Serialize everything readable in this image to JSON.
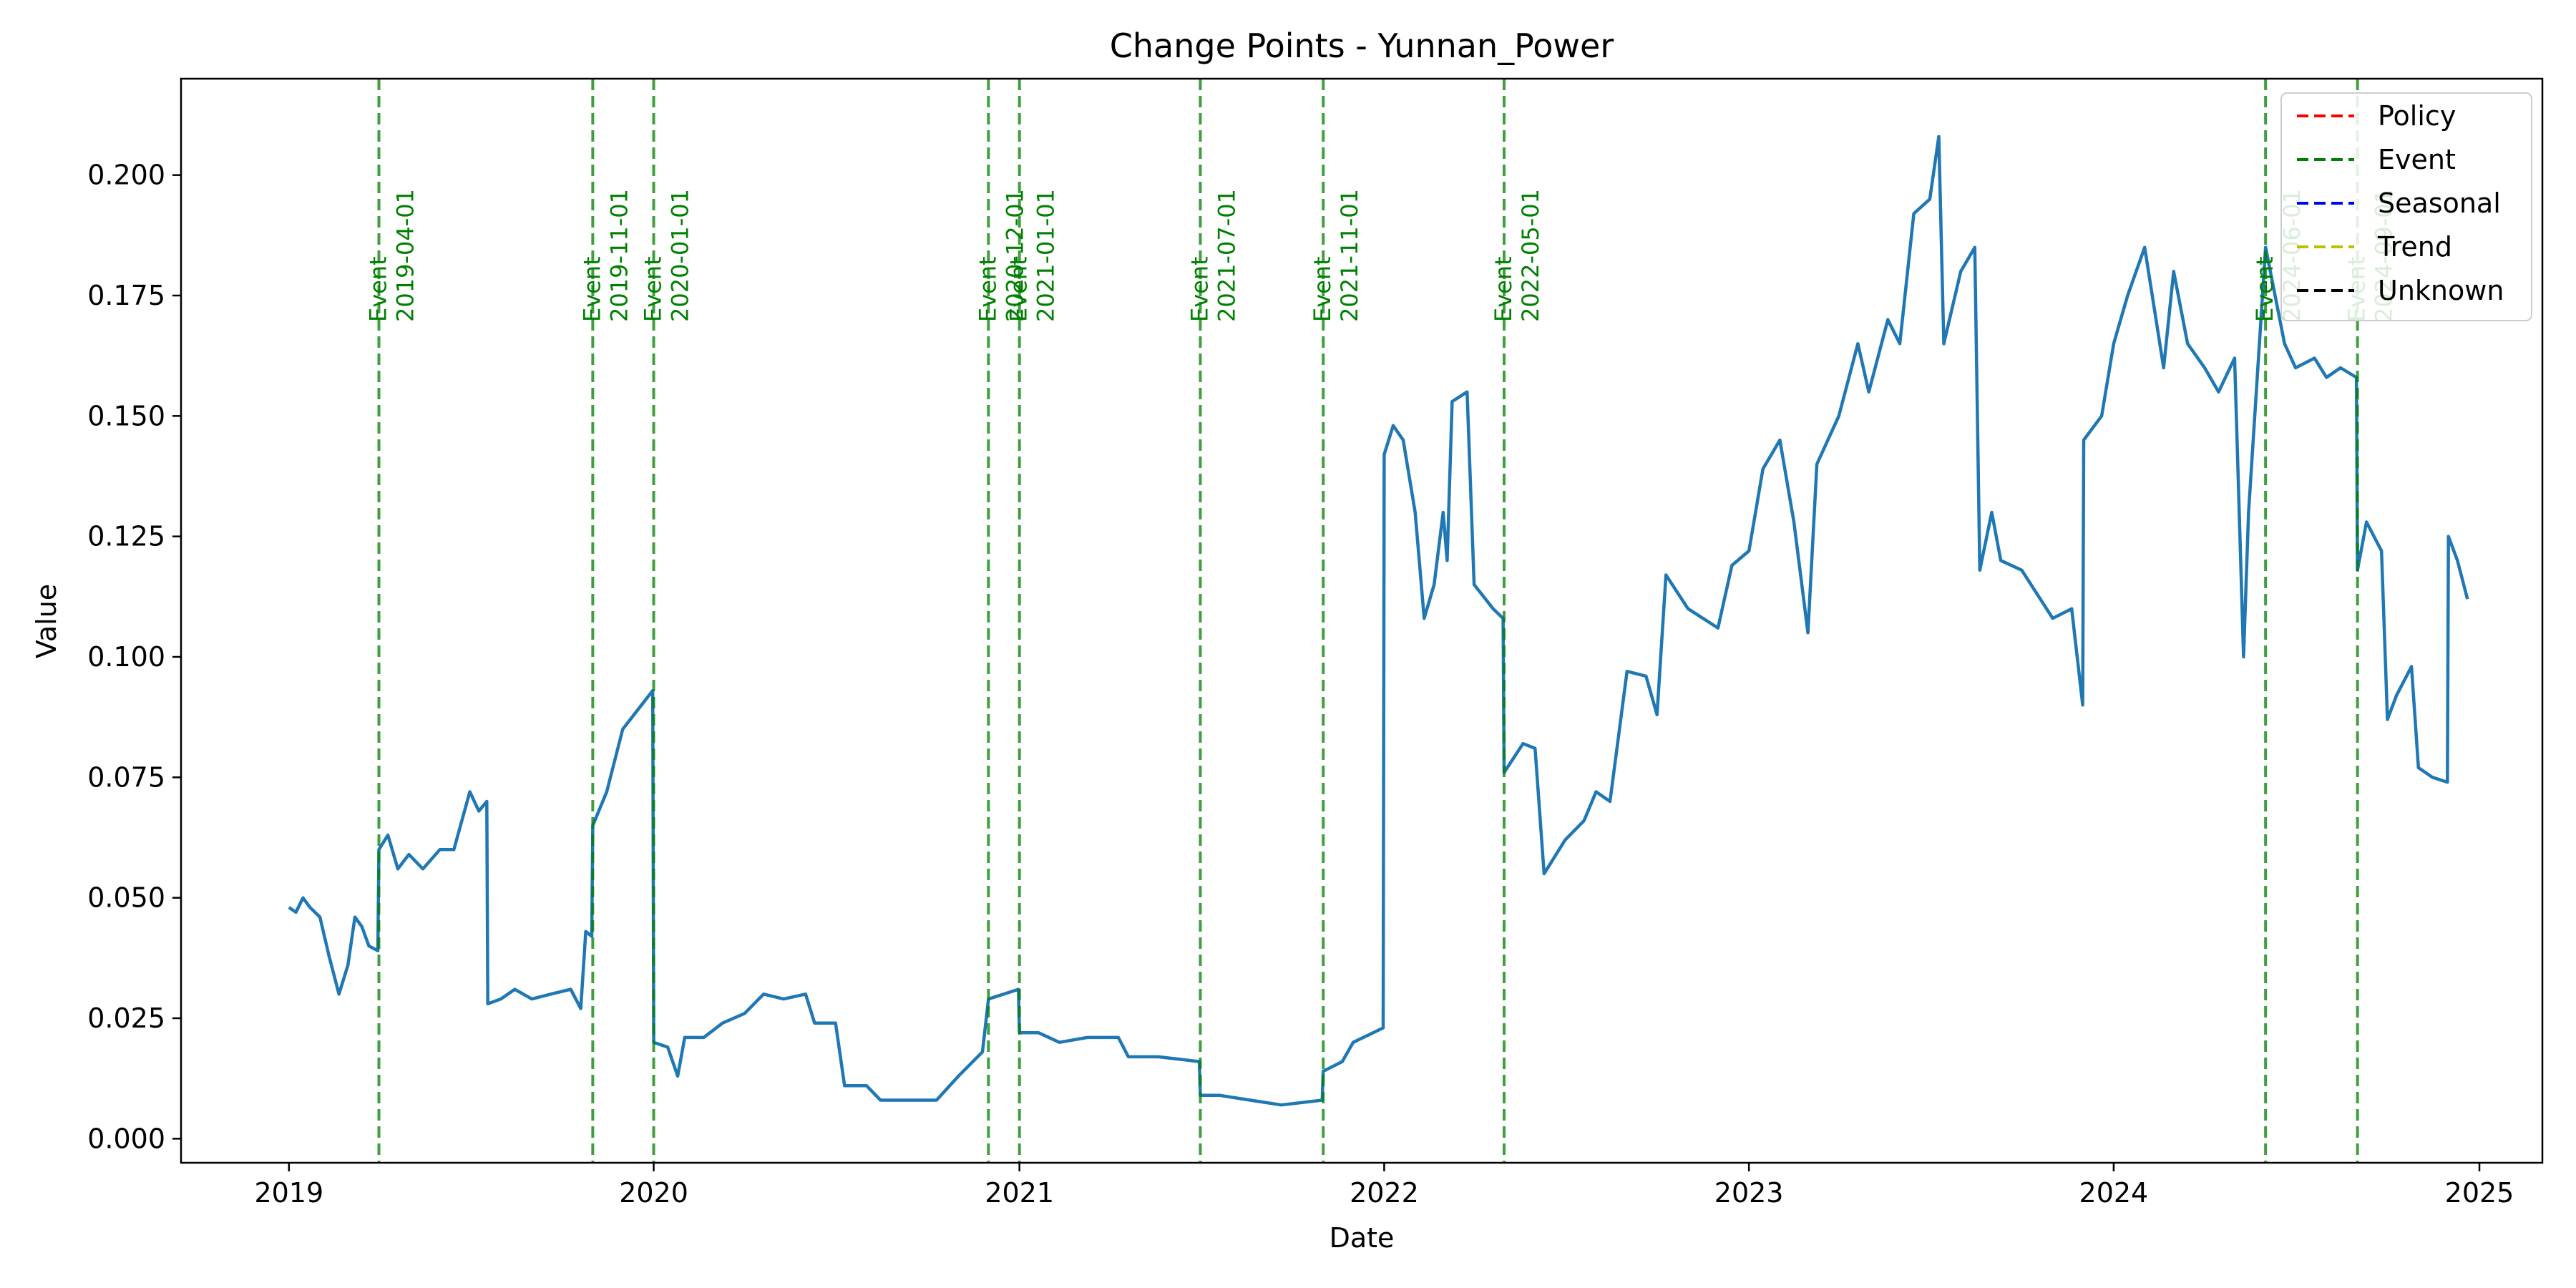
{
  "chart_data": {
    "type": "line",
    "title": "Change Points - Yunnan_Power",
    "xlabel": "Date",
    "ylabel": "Value",
    "xlim": [
      "2018-09-15",
      "2025-03-05"
    ],
    "ylim": [
      -0.005,
      0.22
    ],
    "x_ticks": [
      "2019",
      "2020",
      "2021",
      "2022",
      "2023",
      "2024",
      "2025"
    ],
    "y_ticks": [
      "0.000",
      "0.025",
      "0.050",
      "0.075",
      "0.100",
      "0.125",
      "0.150",
      "0.175",
      "0.200"
    ],
    "grid": false,
    "legend_position": "top-right",
    "legend": [
      {
        "label": "Policy",
        "color": "#ff0000"
      },
      {
        "label": "Event",
        "color": "#008000"
      },
      {
        "label": "Seasonal",
        "color": "#0000ff"
      },
      {
        "label": "Trend",
        "color": "#bfbf00"
      },
      {
        "label": "Unknown",
        "color": "#000000"
      }
    ],
    "change_points": [
      {
        "date": "2019-04-01",
        "type": "Event"
      },
      {
        "date": "2019-11-01",
        "type": "Event"
      },
      {
        "date": "2020-01-01",
        "type": "Event"
      },
      {
        "date": "2020-12-01",
        "type": "Event"
      },
      {
        "date": "2021-01-01",
        "type": "Event"
      },
      {
        "date": "2021-07-01",
        "type": "Event"
      },
      {
        "date": "2021-11-01",
        "type": "Event"
      },
      {
        "date": "2022-05-01",
        "type": "Event"
      },
      {
        "date": "2024-06-01",
        "type": "Event"
      },
      {
        "date": "2024-09-01",
        "type": "Event"
      }
    ],
    "series": [
      {
        "color": "#1f77b4",
        "points": [
          [
            "2019-01-01",
            0.048
          ],
          [
            "2019-01-08",
            0.047
          ],
          [
            "2019-01-15",
            0.05
          ],
          [
            "2019-01-22",
            0.048
          ],
          [
            "2019-02-01",
            0.046
          ],
          [
            "2019-02-10",
            0.038
          ],
          [
            "2019-02-20",
            0.03
          ],
          [
            "2019-03-01",
            0.036
          ],
          [
            "2019-03-08",
            0.046
          ],
          [
            "2019-03-15",
            0.044
          ],
          [
            "2019-03-22",
            0.04
          ],
          [
            "2019-03-31",
            0.039
          ],
          [
            "2019-04-01",
            0.06
          ],
          [
            "2019-04-10",
            0.063
          ],
          [
            "2019-04-20",
            0.056
          ],
          [
            "2019-05-01",
            0.059
          ],
          [
            "2019-05-15",
            0.056
          ],
          [
            "2019-06-01",
            0.06
          ],
          [
            "2019-06-15",
            0.06
          ],
          [
            "2019-07-01",
            0.072
          ],
          [
            "2019-07-10",
            0.068
          ],
          [
            "2019-07-18",
            0.07
          ],
          [
            "2019-07-19",
            0.028
          ],
          [
            "2019-08-01",
            0.029
          ],
          [
            "2019-08-15",
            0.031
          ],
          [
            "2019-09-01",
            0.029
          ],
          [
            "2019-09-20",
            0.03
          ],
          [
            "2019-10-10",
            0.031
          ],
          [
            "2019-10-20",
            0.027
          ],
          [
            "2019-10-25",
            0.043
          ],
          [
            "2019-10-31",
            0.042
          ],
          [
            "2019-11-01",
            0.065
          ],
          [
            "2019-11-15",
            0.072
          ],
          [
            "2019-12-01",
            0.085
          ],
          [
            "2019-12-31",
            0.093
          ],
          [
            "2020-01-01",
            0.02
          ],
          [
            "2020-01-15",
            0.019
          ],
          [
            "2020-01-25",
            0.013
          ],
          [
            "2020-02-01",
            0.021
          ],
          [
            "2020-02-20",
            0.021
          ],
          [
            "2020-03-10",
            0.024
          ],
          [
            "2020-04-01",
            0.026
          ],
          [
            "2020-04-20",
            0.03
          ],
          [
            "2020-05-10",
            0.029
          ],
          [
            "2020-06-01",
            0.03
          ],
          [
            "2020-06-10",
            0.024
          ],
          [
            "2020-07-01",
            0.024
          ],
          [
            "2020-07-10",
            0.011
          ],
          [
            "2020-08-01",
            0.011
          ],
          [
            "2020-08-15",
            0.008
          ],
          [
            "2020-09-15",
            0.008
          ],
          [
            "2020-10-10",
            0.008
          ],
          [
            "2020-11-01",
            0.013
          ],
          [
            "2020-11-25",
            0.018
          ],
          [
            "2020-12-01",
            0.029
          ],
          [
            "2020-12-31",
            0.031
          ],
          [
            "2021-01-01",
            0.022
          ],
          [
            "2021-01-20",
            0.022
          ],
          [
            "2021-02-10",
            0.02
          ],
          [
            "2021-03-10",
            0.021
          ],
          [
            "2021-04-10",
            0.021
          ],
          [
            "2021-04-20",
            0.017
          ],
          [
            "2021-05-20",
            0.017
          ],
          [
            "2021-06-30",
            0.016
          ],
          [
            "2021-07-01",
            0.009
          ],
          [
            "2021-07-20",
            0.009
          ],
          [
            "2021-08-20",
            0.008
          ],
          [
            "2021-09-20",
            0.007
          ],
          [
            "2021-10-31",
            0.008
          ],
          [
            "2021-11-01",
            0.014
          ],
          [
            "2021-11-20",
            0.016
          ],
          [
            "2021-12-01",
            0.02
          ],
          [
            "2021-12-31",
            0.023
          ],
          [
            "2022-01-01",
            0.142
          ],
          [
            "2022-01-10",
            0.148
          ],
          [
            "2022-01-20",
            0.145
          ],
          [
            "2022-02-01",
            0.13
          ],
          [
            "2022-02-10",
            0.108
          ],
          [
            "2022-02-20",
            0.115
          ],
          [
            "2022-03-01",
            0.13
          ],
          [
            "2022-03-05",
            0.12
          ],
          [
            "2022-03-10",
            0.153
          ],
          [
            "2022-03-25",
            0.155
          ],
          [
            "2022-04-01",
            0.115
          ],
          [
            "2022-04-20",
            0.11
          ],
          [
            "2022-04-30",
            0.108
          ],
          [
            "2022-05-01",
            0.076
          ],
          [
            "2022-05-20",
            0.082
          ],
          [
            "2022-06-01",
            0.081
          ],
          [
            "2022-06-10",
            0.055
          ],
          [
            "2022-07-01",
            0.062
          ],
          [
            "2022-07-20",
            0.066
          ],
          [
            "2022-08-01",
            0.072
          ],
          [
            "2022-08-15",
            0.07
          ],
          [
            "2022-09-01",
            0.097
          ],
          [
            "2022-09-20",
            0.096
          ],
          [
            "2022-10-01",
            0.088
          ],
          [
            "2022-10-10",
            0.117
          ],
          [
            "2022-11-01",
            0.11
          ],
          [
            "2022-12-01",
            0.106
          ],
          [
            "2022-12-15",
            0.119
          ],
          [
            "2023-01-01",
            0.122
          ],
          [
            "2023-01-15",
            0.139
          ],
          [
            "2023-02-01",
            0.145
          ],
          [
            "2023-02-15",
            0.128
          ],
          [
            "2023-03-01",
            0.105
          ],
          [
            "2023-03-10",
            0.14
          ],
          [
            "2023-04-01",
            0.15
          ],
          [
            "2023-04-20",
            0.165
          ],
          [
            "2023-05-01",
            0.155
          ],
          [
            "2023-05-20",
            0.17
          ],
          [
            "2023-06-01",
            0.165
          ],
          [
            "2023-06-15",
            0.192
          ],
          [
            "2023-07-01",
            0.195
          ],
          [
            "2023-07-10",
            0.208
          ],
          [
            "2023-07-15",
            0.165
          ],
          [
            "2023-08-01",
            0.18
          ],
          [
            "2023-08-15",
            0.185
          ],
          [
            "2023-08-20",
            0.118
          ],
          [
            "2023-09-01",
            0.13
          ],
          [
            "2023-09-10",
            0.12
          ],
          [
            "2023-10-01",
            0.118
          ],
          [
            "2023-11-01",
            0.108
          ],
          [
            "2023-11-20",
            0.11
          ],
          [
            "2023-12-01",
            0.09
          ],
          [
            "2023-12-02",
            0.145
          ],
          [
            "2023-12-20",
            0.15
          ],
          [
            "2024-01-01",
            0.165
          ],
          [
            "2024-01-15",
            0.175
          ],
          [
            "2024-02-01",
            0.185
          ],
          [
            "2024-02-20",
            0.16
          ],
          [
            "2024-03-01",
            0.18
          ],
          [
            "2024-03-15",
            0.165
          ],
          [
            "2024-04-01",
            0.16
          ],
          [
            "2024-04-15",
            0.155
          ],
          [
            "2024-05-01",
            0.162
          ],
          [
            "2024-05-10",
            0.1
          ],
          [
            "2024-05-15",
            0.13
          ],
          [
            "2024-06-01",
            0.185
          ],
          [
            "2024-06-20",
            0.165
          ],
          [
            "2024-07-01",
            0.16
          ],
          [
            "2024-07-20",
            0.162
          ],
          [
            "2024-08-01",
            0.158
          ],
          [
            "2024-08-15",
            0.16
          ],
          [
            "2024-08-31",
            0.158
          ],
          [
            "2024-09-01",
            0.118
          ],
          [
            "2024-09-10",
            0.128
          ],
          [
            "2024-09-25",
            0.122
          ],
          [
            "2024-10-01",
            0.087
          ],
          [
            "2024-10-10",
            0.092
          ],
          [
            "2024-10-25",
            0.098
          ],
          [
            "2024-11-01",
            0.077
          ],
          [
            "2024-11-15",
            0.075
          ],
          [
            "2024-11-30",
            0.074
          ],
          [
            "2024-12-01",
            0.125
          ],
          [
            "2024-12-10",
            0.12
          ],
          [
            "2024-12-20",
            0.112
          ]
        ]
      }
    ]
  }
}
